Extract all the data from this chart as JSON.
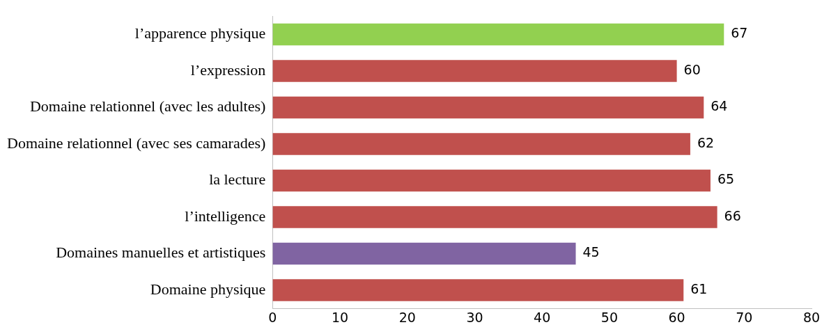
{
  "chart_data": {
    "type": "bar",
    "orientation": "horizontal",
    "categories": [
      "l’apparence physique",
      "l’expression",
      "Domaine relationnel (avec les adultes)",
      "Domaine relationnel (avec ses camarades)",
      "la lecture",
      "l’intelligence",
      "Domaines manuelles et artistiques",
      "Domaine physique"
    ],
    "values": [
      67,
      60,
      64,
      62,
      65,
      66,
      45,
      61
    ],
    "colors": [
      "#92d050",
      "#c0504d",
      "#c0504d",
      "#c0504d",
      "#c0504d",
      "#c0504d",
      "#8064a2",
      "#c0504d"
    ],
    "xlim": [
      0,
      80
    ],
    "xticks": [
      0,
      10,
      20,
      30,
      40,
      50,
      60,
      70,
      80
    ],
    "data_labels": true,
    "grid": false,
    "legend": false
  }
}
